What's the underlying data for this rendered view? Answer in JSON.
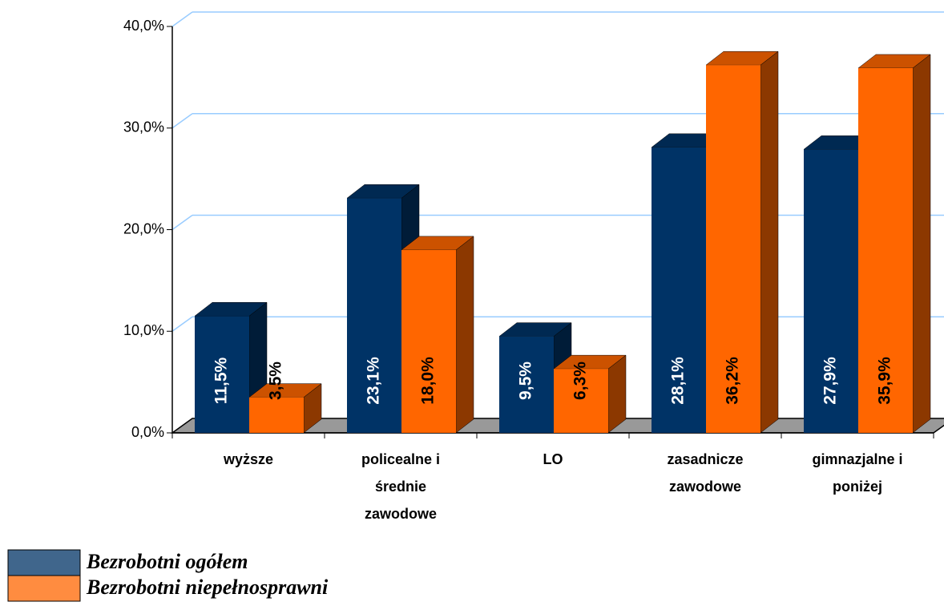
{
  "chart_data": {
    "type": "bar3d",
    "categories": [
      "wyższe",
      "policealne i średnie zawodowe",
      "LO",
      "zasadnicze zawodowe",
      "gimnazjalne i poniżej"
    ],
    "series": [
      {
        "name": "Bezrobotni ogółem",
        "color": "#003366",
        "values": [
          11.5,
          23.1,
          9.5,
          28.1,
          27.9
        ],
        "value_labels": [
          "11,5%",
          "23,1%",
          "9,5%",
          "28,1%",
          "27,9%"
        ]
      },
      {
        "name": "Bezrobotni niepełnosprawni",
        "color": "#ff6600",
        "values": [
          3.5,
          18.0,
          6.3,
          36.2,
          35.9
        ],
        "value_labels": [
          "3,5%",
          "18,0%",
          "6,3%",
          "36,2%",
          "35,9%"
        ]
      }
    ],
    "ylim": [
      0,
      40
    ],
    "yticks": [
      {
        "value": 0,
        "label": "0,0%"
      },
      {
        "value": 10,
        "label": "10,0%"
      },
      {
        "value": 20,
        "label": "20,0%"
      },
      {
        "value": 30,
        "label": "30,0%"
      },
      {
        "value": 40,
        "label": "40,0%"
      }
    ],
    "grid": true
  }
}
